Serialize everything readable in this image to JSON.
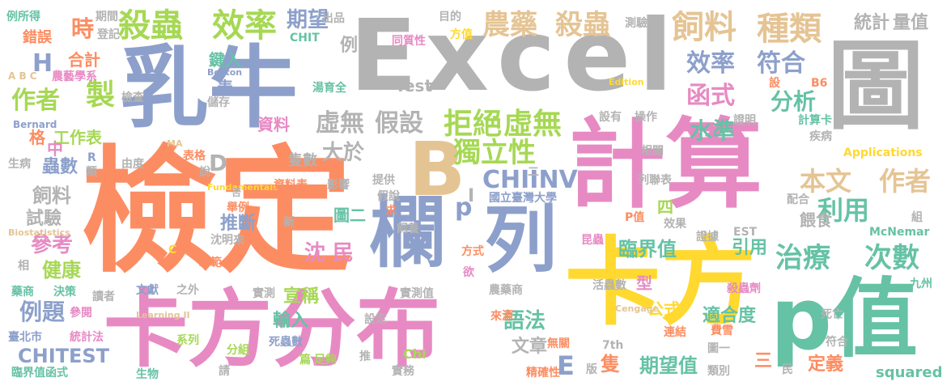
{
  "palette": {
    "green": "#66c2a5",
    "orange": "#fc8d62",
    "blue": "#8da0cb",
    "pink": "#e78ac3",
    "lime": "#a6d854",
    "yellow": "#ffd92f",
    "tan": "#e5c494",
    "gray": "#b3b3b3"
  },
  "words": [
    {
      "text": "Excel",
      "color": "gray"
    },
    {
      "text": "檢定",
      "color": "orange"
    },
    {
      "text": "計算",
      "color": "pink"
    },
    {
      "text": "卡方分布",
      "color": "pink"
    },
    {
      "text": "卡方",
      "color": "yellow"
    },
    {
      "text": "乳牛",
      "color": "blue"
    },
    {
      "text": "圖",
      "color": "gray"
    },
    {
      "text": "p值",
      "color": "green"
    },
    {
      "text": "B",
      "color": "tan"
    },
    {
      "text": "欄",
      "color": "blue"
    },
    {
      "text": "列",
      "color": "blue"
    },
    {
      "text": "殺蟲",
      "color": "lime"
    },
    {
      "text": "效率",
      "color": "lime"
    },
    {
      "text": "農藥",
      "color": "tan"
    },
    {
      "text": "殺蟲",
      "color": "tan"
    },
    {
      "text": "飼料",
      "color": "tan"
    },
    {
      "text": "種類",
      "color": "tan"
    },
    {
      "text": "統計",
      "color": "gray"
    },
    {
      "text": "量值",
      "color": "gray"
    },
    {
      "text": "期望",
      "color": "blue"
    },
    {
      "text": "效率",
      "color": "blue"
    },
    {
      "text": "符合",
      "color": "blue"
    },
    {
      "text": "函式",
      "color": "pink"
    },
    {
      "text": "分析",
      "color": "green"
    },
    {
      "text": "作者",
      "color": "lime"
    },
    {
      "text": "製",
      "color": "lime"
    },
    {
      "text": "拒絕",
      "color": "lime"
    },
    {
      "text": "虛無",
      "color": "lime"
    },
    {
      "text": "虛無",
      "color": "gray"
    },
    {
      "text": "假設",
      "color": "gray"
    },
    {
      "text": "獨立性",
      "color": "lime"
    },
    {
      "text": "水準",
      "color": "green"
    },
    {
      "text": "本文",
      "color": "tan"
    },
    {
      "text": "作者",
      "color": "tan"
    },
    {
      "text": "利用",
      "color": "green"
    },
    {
      "text": "CHIINV",
      "color": "blue"
    },
    {
      "text": "治療",
      "color": "green"
    },
    {
      "text": "次數",
      "color": "green"
    },
    {
      "text": "臨界值",
      "color": "green"
    },
    {
      "text": "例題",
      "color": "blue"
    },
    {
      "text": "CHITEST",
      "color": "blue"
    },
    {
      "text": "參考",
      "color": "pink"
    },
    {
      "text": "健康",
      "color": "lime"
    },
    {
      "text": "沈 民",
      "color": "pink"
    },
    {
      "text": "宣稱",
      "color": "lime"
    },
    {
      "text": "輸入",
      "color": "green"
    },
    {
      "text": "語法",
      "color": "green"
    },
    {
      "text": "期望值",
      "color": "green"
    },
    {
      "text": "適合度",
      "color": "green"
    },
    {
      "text": "定義",
      "color": "orange"
    },
    {
      "text": "squared",
      "color": "green"
    },
    {
      "text": "大於",
      "color": "gray"
    },
    {
      "text": "隻數",
      "color": "gray"
    },
    {
      "text": "資料",
      "color": "pink"
    },
    {
      "text": "工作表",
      "color": "lime"
    },
    {
      "text": "合計",
      "color": "orange"
    },
    {
      "text": "時",
      "color": "orange"
    },
    {
      "text": "H",
      "color": "blue"
    },
    {
      "text": "D",
      "color": "gray"
    },
    {
      "text": "飼料",
      "color": "gray"
    },
    {
      "text": "試驗",
      "color": "gray"
    },
    {
      "text": "蟲數",
      "color": "blue"
    },
    {
      "text": "推斷",
      "color": "blue"
    },
    {
      "text": "引用",
      "color": "green"
    },
    {
      "text": "公式",
      "color": "yellow"
    },
    {
      "text": "文章",
      "color": "gray"
    },
    {
      "text": "隻",
      "color": "orange"
    },
    {
      "text": "E",
      "color": "blue"
    },
    {
      "text": "p",
      "color": "blue"
    },
    {
      "text": "Test",
      "color": "gray"
    },
    {
      "text": "例",
      "color": "gray"
    },
    {
      "text": "格",
      "color": "orange"
    },
    {
      "text": "中",
      "color": "pink"
    },
    {
      "text": "鍵入",
      "color": "green"
    },
    {
      "text": "表",
      "color": "blue"
    },
    {
      "text": "錯誤",
      "color": "orange"
    },
    {
      "text": "例所得",
      "color": "green"
    },
    {
      "text": "期間",
      "color": "gray"
    },
    {
      "text": "登記",
      "color": "gray"
    },
    {
      "text": "出品",
      "color": "gray"
    },
    {
      "text": "CHIT",
      "color": "green"
    },
    {
      "text": "目的",
      "color": "gray"
    },
    {
      "text": "方值",
      "color": "yellow"
    },
    {
      "text": "測驗",
      "color": "gray"
    },
    {
      "text": "同質性",
      "color": "pink"
    },
    {
      "text": "湯育全",
      "color": "green"
    },
    {
      "text": "Boston",
      "color": "blue"
    },
    {
      "text": "A B C",
      "color": "tan"
    },
    {
      "text": "農藝學系",
      "color": "pink"
    },
    {
      "text": "檢查",
      "color": "gray"
    },
    {
      "text": "儲存",
      "color": "gray"
    },
    {
      "text": "Edition",
      "color": "yellow"
    },
    {
      "text": "設",
      "color": "orange"
    },
    {
      "text": "B6",
      "color": "orange"
    },
    {
      "text": "計算卡",
      "color": "green"
    },
    {
      "text": "設有",
      "color": "gray"
    },
    {
      "text": "操作",
      "color": "gray"
    },
    {
      "text": "證明",
      "color": "gray"
    },
    {
      "text": "Bernard",
      "color": "blue"
    },
    {
      "text": "生病",
      "color": "gray"
    },
    {
      "text": "R",
      "color": "blue"
    },
    {
      "text": "類",
      "color": "gray"
    },
    {
      "text": "由度",
      "color": "gray"
    },
    {
      "text": "MA",
      "color": "tan"
    },
    {
      "text": "表格",
      "color": "orange"
    },
    {
      "text": "說",
      "color": "gray"
    },
    {
      "text": "Fundamentals",
      "color": "yellow"
    },
    {
      "text": "提供",
      "color": "gray"
    },
    {
      "text": "相關",
      "color": "gray"
    },
    {
      "text": "疾病",
      "color": "gray"
    },
    {
      "text": "Applications",
      "color": "yellow"
    },
    {
      "text": "列聯表",
      "color": "gray"
    },
    {
      "text": "配合",
      "color": "gray"
    },
    {
      "text": "組",
      "color": "gray"
    },
    {
      "text": "資料表",
      "color": "orange"
    },
    {
      "text": "影響",
      "color": "gray"
    },
    {
      "text": "假說",
      "color": "gray"
    },
    {
      "text": "求",
      "color": "orange"
    },
    {
      "text": "國立臺灣大學",
      "color": "blue"
    },
    {
      "text": "四",
      "color": "lime"
    },
    {
      "text": "P值",
      "color": "orange"
    },
    {
      "text": "效果",
      "color": "gray"
    },
    {
      "text": "否",
      "color": "gray"
    },
    {
      "text": "舉例",
      "color": "orange"
    },
    {
      "text": "圖二",
      "color": "green"
    },
    {
      "text": "餵食",
      "color": "gray"
    },
    {
      "text": "新",
      "color": "gray"
    },
    {
      "text": "沈明來",
      "color": "gray"
    },
    {
      "text": "Biostatistics",
      "color": "tan"
    },
    {
      "text": "C",
      "color": "yellow"
    },
    {
      "text": "飼養",
      "color": "gray"
    },
    {
      "text": "方式",
      "color": "orange"
    },
    {
      "text": "欲",
      "color": "pink"
    },
    {
      "text": "昆蟲",
      "color": "pink"
    },
    {
      "text": "證據",
      "color": "gray"
    },
    {
      "text": "EST",
      "color": "gray"
    },
    {
      "text": "McNemar",
      "color": "green"
    },
    {
      "text": "相",
      "color": "gray"
    },
    {
      "text": "示範",
      "color": "orange"
    },
    {
      "text": "藥商",
      "color": "green"
    },
    {
      "text": "決策",
      "color": "green"
    },
    {
      "text": "讀者",
      "color": "gray"
    },
    {
      "text": "文獻",
      "color": "blue"
    },
    {
      "text": "之外",
      "color": "gray"
    },
    {
      "text": "實測",
      "color": "gray"
    },
    {
      "text": "實測值",
      "color": "gray"
    },
    {
      "text": "農藥商",
      "color": "gray"
    },
    {
      "text": "活蟲數",
      "color": "gray"
    },
    {
      "text": "殺蟲劑",
      "color": "pink"
    },
    {
      "text": "型",
      "color": "pink"
    },
    {
      "text": "九州",
      "color": "green"
    },
    {
      "text": "參閱",
      "color": "pink"
    },
    {
      "text": "Learning II",
      "color": "tan"
    },
    {
      "text": "設定",
      "color": "gray"
    },
    {
      "text": "來源",
      "color": "orange"
    },
    {
      "text": "Cengage",
      "color": "tan"
    },
    {
      "text": "費雪",
      "color": "orange"
    },
    {
      "text": "連結",
      "color": "orange"
    },
    {
      "text": "死亡",
      "color": "gray"
    },
    {
      "text": "圖一",
      "color": "gray"
    },
    {
      "text": "臺北市",
      "color": "blue"
    },
    {
      "text": "統計法",
      "color": "pink"
    },
    {
      "text": "系列",
      "color": "lime"
    },
    {
      "text": "分組",
      "color": "lime"
    },
    {
      "text": "死蟲數",
      "color": "blue"
    },
    {
      "text": "篇",
      "color": "lime"
    },
    {
      "text": "足夠",
      "color": "lime"
    },
    {
      "text": "推",
      "color": "gray"
    },
    {
      "text": "Chi",
      "color": "lime"
    },
    {
      "text": "無關",
      "color": "orange"
    },
    {
      "text": "7th",
      "color": "gray"
    },
    {
      "text": "符合",
      "color": "gray"
    },
    {
      "text": "臨界值函式",
      "color": "green"
    },
    {
      "text": "生物",
      "color": "green"
    },
    {
      "text": "請",
      "color": "gray"
    },
    {
      "text": "實務",
      "color": "gray"
    },
    {
      "text": "精確性",
      "color": "orange"
    },
    {
      "text": "版",
      "color": "gray"
    },
    {
      "text": "類別",
      "color": "gray"
    },
    {
      "text": "三",
      "color": "orange"
    },
    {
      "text": "民",
      "color": "gray"
    },
    {
      "text": "二",
      "color": "gray"
    },
    {
      "text": "I",
      "color": "gray"
    }
  ]
}
